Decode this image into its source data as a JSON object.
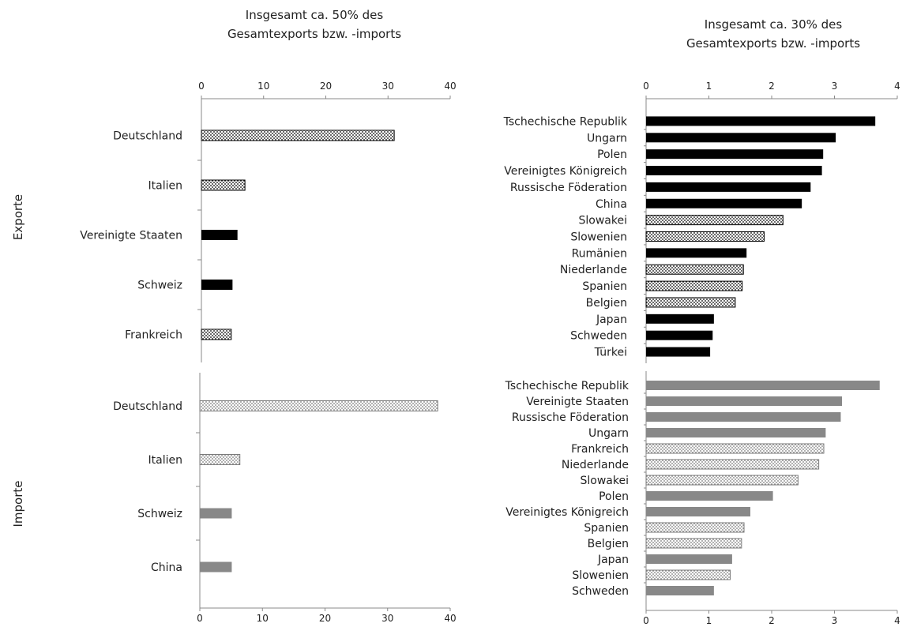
{
  "row_labels": {
    "exports": "Exporte",
    "imports": "Importe"
  },
  "chart_data": [
    {
      "type": "bar",
      "orientation": "horizontal",
      "title": "Insgesamt ca. 50% des Gesamtexports bzw. -imports",
      "title_lines": [
        "Insgesamt ca. 50% des",
        "Gesamtexports bzw. -imports"
      ],
      "row": "Exporte",
      "xlim": [
        0,
        40
      ],
      "ticks": [
        "0",
        "10",
        "20",
        "30",
        "40"
      ],
      "tick_values": [
        0,
        10,
        20,
        30,
        40
      ],
      "categories": [
        "Deutschland",
        "Italien",
        "Vereinigte Staaten",
        "Schweiz",
        "Frankreich"
      ],
      "values": [
        31,
        7,
        5.8,
        5,
        4.8
      ],
      "eu_member": [
        true,
        true,
        false,
        false,
        true
      ]
    },
    {
      "type": "bar",
      "orientation": "horizontal",
      "title": "Insgesamt ca. 30% des Gesamtexports bzw. -imports",
      "title_lines": [
        "Insgesamt ca. 30% des",
        "Gesamtexports bzw. -imports"
      ],
      "row": "Exporte",
      "xlim": [
        0,
        4
      ],
      "ticks": [
        "0",
        "1",
        "2",
        "3",
        "4"
      ],
      "tick_values": [
        0,
        1,
        2,
        3,
        4
      ],
      "categories": [
        "Tschechische Republik",
        "Ungarn",
        "Polen",
        "Vereinigtes Königreich",
        "Russische Föderation",
        "China",
        "Slowakei",
        "Slowenien",
        "Rumänien",
        "Niederlande",
        "Spanien",
        "Belgien",
        "Japan",
        "Schweden",
        "Türkei"
      ],
      "values": [
        3.65,
        3.02,
        2.82,
        2.8,
        2.62,
        2.48,
        2.18,
        1.88,
        1.6,
        1.55,
        1.53,
        1.42,
        1.08,
        1.06,
        1.02
      ],
      "eu_member": [
        false,
        false,
        false,
        false,
        false,
        false,
        true,
        true,
        false,
        true,
        true,
        true,
        false,
        false,
        false
      ]
    },
    {
      "type": "bar",
      "orientation": "horizontal",
      "row": "Importe",
      "xlim": [
        0,
        40
      ],
      "ticks": [
        "0",
        "10",
        "20",
        "30",
        "40"
      ],
      "tick_values": [
        0,
        10,
        20,
        30,
        40
      ],
      "categories": [
        "Deutschland",
        "Italien",
        "Schweiz",
        "China"
      ],
      "values": [
        38,
        6.4,
        5.1,
        5.1
      ],
      "eu_member": [
        true,
        true,
        false,
        false
      ]
    },
    {
      "type": "bar",
      "orientation": "horizontal",
      "row": "Importe",
      "xlim": [
        0,
        4
      ],
      "ticks": [
        "0",
        "1",
        "2",
        "3",
        "4"
      ],
      "tick_values": [
        0,
        1,
        2,
        3,
        4
      ],
      "categories": [
        "Tschechische Republik",
        "Vereinigte Staaten",
        "Russische Föderation",
        "Ungarn",
        "Frankreich",
        "Niederlande",
        "Slowakei",
        "Polen",
        "Vereinigtes Königreich",
        "Spanien",
        "Belgien",
        "Japan",
        "Slowenien",
        "Schweden"
      ],
      "values": [
        3.72,
        3.12,
        3.1,
        2.86,
        2.83,
        2.75,
        2.42,
        2.02,
        1.66,
        1.56,
        1.52,
        1.37,
        1.34,
        1.08
      ],
      "eu_member": [
        false,
        false,
        false,
        false,
        true,
        true,
        true,
        false,
        false,
        true,
        true,
        false,
        true,
        false
      ]
    }
  ]
}
